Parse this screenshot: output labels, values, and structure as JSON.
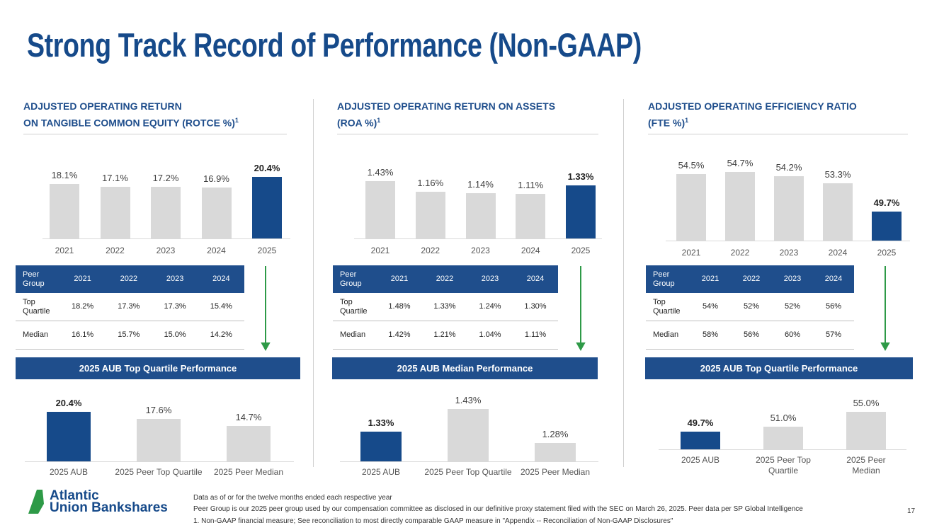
{
  "title": "Strong Track Record of Performance (Non-GAAP)",
  "panels": [
    {
      "heading": {
        "lines": [
          "ADJUSTED OPERATING RETURN",
          "ON TANGIBLE COMMON EQUITY (ROTCE %)"
        ],
        "note": "1"
      },
      "table": {
        "header": [
          "Peer Group",
          "2021",
          "2022",
          "2023",
          "2024"
        ],
        "rows": [
          [
            "Top Quartile",
            "18.2%",
            "17.3%",
            "17.3%",
            "15.4%"
          ],
          [
            "Median",
            "16.1%",
            "15.7%",
            "15.0%",
            "14.2%"
          ]
        ]
      },
      "banner": "2025 AUB Top Quartile Performance"
    },
    {
      "heading": {
        "lines": [
          "ADJUSTED OPERATING RETURN ON ASSETS",
          "(ROA %)"
        ],
        "note": "1"
      },
      "table": {
        "header": [
          "Peer Group",
          "2021",
          "2022",
          "2023",
          "2024"
        ],
        "rows": [
          [
            "Top Quartile",
            "1.48%",
            "1.33%",
            "1.24%",
            "1.30%"
          ],
          [
            "Median",
            "1.42%",
            "1.21%",
            "1.04%",
            "1.11%"
          ]
        ]
      },
      "banner": "2025 AUB Median Performance"
    },
    {
      "heading": {
        "lines": [
          "ADJUSTED OPERATING EFFICIENCY RATIO",
          "(FTE %)"
        ],
        "note": "1"
      },
      "table": {
        "header": [
          "Peer Group",
          "2021",
          "2022",
          "2023",
          "2024"
        ],
        "rows": [
          [
            "Top Quartile",
            "54%",
            "52%",
            "52%",
            "56%"
          ],
          [
            "Median",
            "58%",
            "56%",
            "60%",
            "57%"
          ]
        ]
      },
      "banner": "2025 AUB Top Quartile Performance"
    }
  ],
  "chart_data": [
    {
      "type": "bar",
      "categories": [
        "2021",
        "2022",
        "2023",
        "2024",
        "2025"
      ],
      "values": [
        18.1,
        17.1,
        17.2,
        16.9,
        20.4
      ],
      "value_labels": [
        "18.1%",
        "17.1%",
        "17.2%",
        "16.9%",
        "20.4%"
      ],
      "colors": [
        "#d9d9d9",
        "#d9d9d9",
        "#d9d9d9",
        "#d9d9d9",
        "#164a8a"
      ],
      "ylim": [
        0,
        23.5
      ]
    },
    {
      "type": "bar",
      "categories": [
        "2021",
        "2022",
        "2023",
        "2024",
        "2025"
      ],
      "values": [
        1.43,
        1.16,
        1.14,
        1.11,
        1.33
      ],
      "value_labels": [
        "1.43%",
        "1.16%",
        "1.14%",
        "1.11%",
        "1.33%"
      ],
      "colors": [
        "#d9d9d9",
        "#d9d9d9",
        "#d9d9d9",
        "#d9d9d9",
        "#164a8a"
      ],
      "ylim": [
        0,
        1.77
      ]
    },
    {
      "type": "bar",
      "categories": [
        "2021",
        "2022",
        "2023",
        "2024",
        "2025"
      ],
      "values": [
        54.5,
        54.7,
        54.2,
        53.3,
        49.7
      ],
      "value_labels": [
        "54.5%",
        "54.7%",
        "54.2%",
        "53.3%",
        "49.7%"
      ],
      "colors": [
        "#d9d9d9",
        "#d9d9d9",
        "#d9d9d9",
        "#d9d9d9",
        "#164a8a"
      ],
      "ylim": [
        46,
        55
      ]
    },
    {
      "type": "bar",
      "categories": [
        "2025 AUB",
        "2025 Peer Top Quartile",
        "2025 Peer Median"
      ],
      "values": [
        20.4,
        17.6,
        14.7
      ],
      "value_labels": [
        "20.4%",
        "17.6%",
        "14.7%"
      ],
      "colors": [
        "#164a8a",
        "#d9d9d9",
        "#d9d9d9"
      ],
      "ylim": [
        0,
        23.3
      ]
    },
    {
      "type": "bar",
      "categories": [
        "2025 AUB",
        "2025 Peer Top Quartile",
        "2025 Peer Median"
      ],
      "values": [
        1.33,
        1.43,
        1.28
      ],
      "value_labels": [
        "1.33%",
        "1.43%",
        "1.28%"
      ],
      "colors": [
        "#164a8a",
        "#d9d9d9",
        "#d9d9d9"
      ],
      "ylim": [
        1.2,
        1.45
      ]
    },
    {
      "type": "bar",
      "categories": [
        "2025 AUB",
        "2025 Peer Top Quartile",
        "2025 Peer Median"
      ],
      "values": [
        49.7,
        51.0,
        55.0
      ],
      "value_labels": [
        "49.7%",
        "51.0%",
        "55.0%"
      ],
      "colors": [
        "#164a8a",
        "#d9d9d9",
        "#d9d9d9"
      ],
      "ylim": [
        45,
        60
      ]
    }
  ],
  "footer": {
    "logo": [
      "Atlantic",
      "Union Bankshares"
    ],
    "notes": [
      "Data as of or for the twelve months ended each respective year",
      "Peer Group is our 2025 peer group used by our compensation committee as disclosed in our definitive proxy statement filed with the SEC on March 26, 2025. Peer data per SP Global Intelligence",
      "1.  Non-GAAP financial measure; See reconciliation to most directly comparable GAAP measure in \"Appendix -- Reconciliation of Non-GAAP Disclosures\""
    ],
    "page_number": "17"
  }
}
